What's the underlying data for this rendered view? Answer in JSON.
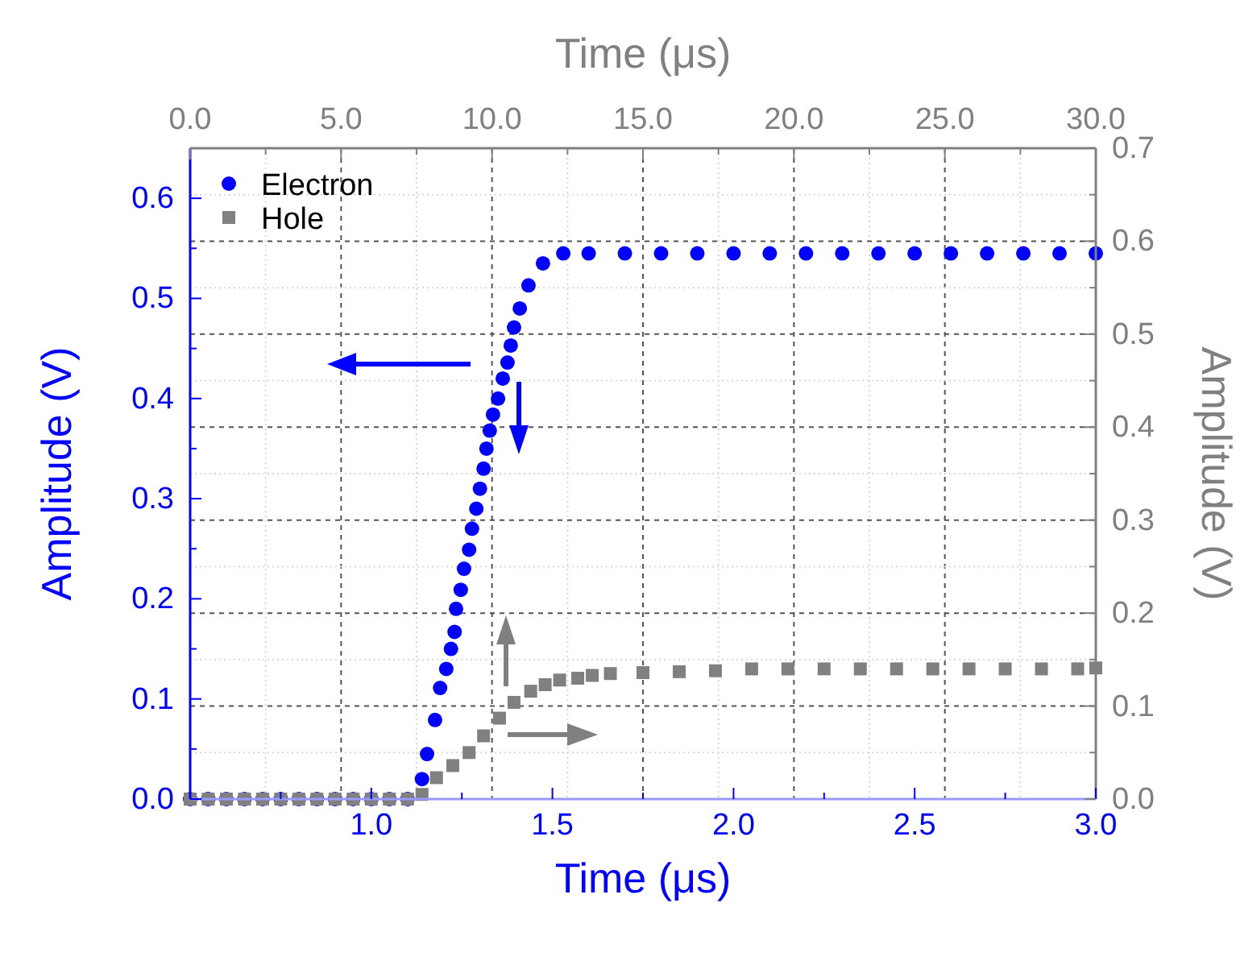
{
  "chart_data": {
    "type": "scatter",
    "xlabel": "Time (μs)",
    "ylabel": "Amplitude (V)",
    "y2label": "Amplitude (V)",
    "x2label": "Time (μs)",
    "xlim": [
      0.5,
      3.0
    ],
    "xticks": [
      {
        "value": 0.75,
        "label": null
      },
      {
        "value": 1.0,
        "label": "1.0"
      },
      {
        "value": 1.25,
        "label": null
      },
      {
        "value": 1.5,
        "label": "1.5"
      },
      {
        "value": 1.75,
        "label": null
      },
      {
        "value": 2.0,
        "label": "2.0"
      },
      {
        "value": 2.25,
        "label": null
      },
      {
        "value": 2.5,
        "label": "2.5"
      },
      {
        "value": 2.75,
        "label": null
      },
      {
        "value": 3.0,
        "label": "3.0"
      }
    ],
    "ylim": [
      0,
      0.65
    ],
    "yticks": [
      {
        "value": 0,
        "label": "0.0"
      },
      {
        "value": 0.05,
        "label": null
      },
      {
        "value": 0.1,
        "label": "0.1"
      },
      {
        "value": 0.15,
        "label": null
      },
      {
        "value": 0.2,
        "label": "0.2"
      },
      {
        "value": 0.25,
        "label": null
      },
      {
        "value": 0.3,
        "label": "0.3"
      },
      {
        "value": 0.35,
        "label": null
      },
      {
        "value": 0.4,
        "label": "0.4"
      },
      {
        "value": 0.45,
        "label": null
      },
      {
        "value": 0.5,
        "label": "0.5"
      },
      {
        "value": 0.55,
        "label": null
      },
      {
        "value": 0.6,
        "label": "0.6"
      }
    ],
    "y2lim": [
      0,
      0.7
    ],
    "y2ticks": [
      {
        "value": 0,
        "label": "0.0"
      },
      {
        "value": 0.05,
        "label": null
      },
      {
        "value": 0.1,
        "label": "0.1"
      },
      {
        "value": 0.15,
        "label": null
      },
      {
        "value": 0.2,
        "label": "0.2"
      },
      {
        "value": 0.25,
        "label": null
      },
      {
        "value": 0.3,
        "label": "0.3"
      },
      {
        "value": 0.35,
        "label": null
      },
      {
        "value": 0.4,
        "label": "0.4"
      },
      {
        "value": 0.45,
        "label": null
      },
      {
        "value": 0.5,
        "label": "0.5"
      },
      {
        "value": 0.55,
        "label": null
      },
      {
        "value": 0.6,
        "label": "0.6"
      },
      {
        "value": 0.65,
        "label": null
      },
      {
        "value": 0.7,
        "label": "0.7"
      }
    ],
    "x2lim": [
      0,
      30
    ],
    "x2ticks": [
      {
        "value": 0,
        "label": "0.0"
      },
      {
        "value": 2.5,
        "label": null
      },
      {
        "value": 5,
        "label": "5.0"
      },
      {
        "value": 7.5,
        "label": null
      },
      {
        "value": 10,
        "label": "10.0"
      },
      {
        "value": 12.5,
        "label": null
      },
      {
        "value": 15,
        "label": "15.0"
      },
      {
        "value": 17.5,
        "label": null
      },
      {
        "value": 20,
        "label": "20.0"
      },
      {
        "value": 22.5,
        "label": null
      },
      {
        "value": 25,
        "label": "25.0"
      },
      {
        "value": 27.5,
        "label": null
      },
      {
        "value": 30,
        "label": "30.0"
      }
    ],
    "grid": true,
    "legend": "top left",
    "series": [
      {
        "name": "Electron",
        "color": "#0000ff",
        "marker": "circle",
        "x": [
          0.5,
          0.55,
          0.6,
          0.65,
          0.7,
          0.75,
          0.8,
          0.85,
          0.9,
          0.95,
          1.0,
          1.05,
          1.1,
          1.14,
          1.154,
          1.176,
          1.19,
          1.207,
          1.22,
          1.23,
          1.234,
          1.247,
          1.256,
          1.27,
          1.278,
          1.29,
          1.3,
          1.31,
          1.318,
          1.327,
          1.336,
          1.35,
          1.363,
          1.376,
          1.385,
          1.394,
          1.41,
          1.434,
          1.474,
          1.53,
          1.6,
          1.7,
          1.8,
          1.9,
          2.0,
          2.1,
          2.2,
          2.3,
          2.4,
          2.5,
          2.6,
          2.7,
          2.8,
          2.9,
          3.0
        ],
        "values": [
          0,
          0,
          0,
          0,
          0,
          0,
          0,
          0,
          0,
          0,
          0,
          0,
          0,
          0.02,
          0.045,
          0.079,
          0.111,
          0.13,
          0.15,
          0.167,
          0.19,
          0.209,
          0.23,
          0.249,
          0.27,
          0.29,
          0.31,
          0.33,
          0.35,
          0.368,
          0.384,
          0.4,
          0.42,
          0.436,
          0.453,
          0.471,
          0.49,
          0.513,
          0.535,
          0.545,
          0.545,
          0.545,
          0.545,
          0.545,
          0.545,
          0.545,
          0.545,
          0.545,
          0.545,
          0.545,
          0.545,
          0.545,
          0.545,
          0.545,
          0.545
        ]
      },
      {
        "name": "Hole",
        "color": "#808080",
        "marker": "square",
        "axis": "y2",
        "x": [
          0.5,
          0.55,
          0.6,
          0.65,
          0.7,
          0.75,
          0.8,
          0.85,
          0.9,
          0.95,
          1.0,
          1.05,
          1.1,
          1.14,
          1.18,
          1.225,
          1.27,
          1.31,
          1.354,
          1.394,
          1.44,
          1.48,
          1.52,
          1.57,
          1.61,
          1.66,
          1.75,
          1.85,
          1.95,
          2.05,
          2.15,
          2.25,
          2.35,
          2.45,
          2.55,
          2.65,
          2.75,
          2.85,
          2.95,
          3.0
        ],
        "values": [
          0,
          0,
          0,
          0,
          0,
          0,
          0,
          0,
          0,
          0,
          0,
          0,
          0,
          0.005,
          0.023,
          0.036,
          0.05,
          0.068,
          0.087,
          0.104,
          0.116,
          0.123,
          0.128,
          0.13,
          0.133,
          0.135,
          0.136,
          0.137,
          0.138,
          0.14,
          0.14,
          0.14,
          0.14,
          0.14,
          0.14,
          0.14,
          0.14,
          0.14,
          0.14,
          0.141
        ]
      }
    ]
  }
}
